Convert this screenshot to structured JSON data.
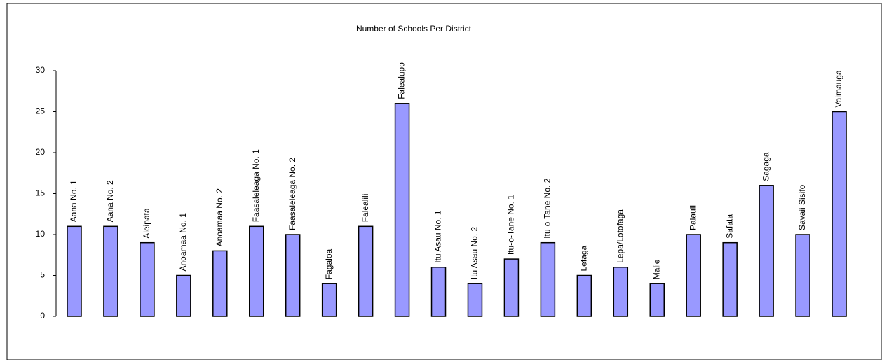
{
  "chart_data": {
    "type": "bar",
    "title": "Number of Schools Per District",
    "categories": [
      "Aana No. 1",
      "Aana No. 2",
      "Aleipata",
      "Anoamaa No. 1",
      "Anoamaa No. 2",
      "Faasaleleaga No. 1",
      "Faasaleleaga No. 2",
      "Fagaloa",
      "Falealili",
      "Falealupo",
      "Itu Asau No. 1",
      "Itu Asau No. 2",
      "Itu-o-Tane No. 1",
      "Itu-o-Tane No. 2",
      "Lefaga",
      "Lepa/Lotofaga",
      "Malie",
      "Palauli",
      "Safata",
      "Sagaga",
      "Savaii Sisifo",
      "Vaimauga"
    ],
    "values": [
      11,
      11,
      9,
      5,
      8,
      11,
      10,
      4,
      11,
      26,
      6,
      4,
      7,
      9,
      5,
      6,
      4,
      10,
      9,
      16,
      10,
      25
    ],
    "color": "#9999ff",
    "ylim": [
      0,
      30
    ],
    "yticks": [
      0,
      5,
      10,
      15,
      20,
      25,
      30
    ],
    "grid": false
  }
}
